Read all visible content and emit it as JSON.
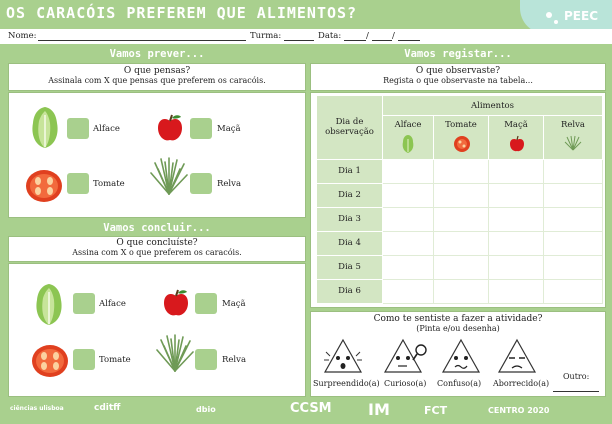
{
  "header": {
    "title": "OS CARACÓIS PREFEREM QUE ALIMENTOS?",
    "badge": "PEEC",
    "name_label": "Nome:",
    "class_label": "Turma:",
    "date_label": "Data:",
    "date_sep": "/"
  },
  "predict": {
    "heading": "Vamos prever...",
    "question": "O que pensas?",
    "instruction": "Assinala com X que pensas que preferem os caracóis.",
    "options": [
      "Alface",
      "Maçã",
      "Tomate",
      "Relva"
    ]
  },
  "conclude": {
    "heading": "Vamos concluir...",
    "question": "O que concluíste?",
    "instruction": "Assina com X o que preferem os caracóis.",
    "options": [
      "Alface",
      "Maçã",
      "Tomate",
      "Relva"
    ]
  },
  "register": {
    "heading": "Vamos registar...",
    "question": "O que observaste?",
    "instruction": "Regista o que observaste na tabela...",
    "table": {
      "row_header": [
        "Dia de",
        "observação"
      ],
      "group_header": "Alimentos",
      "columns": [
        "Alface",
        "Tomate",
        "Maçã",
        "Relva"
      ],
      "rows": [
        "Dia 1",
        "Dia 2",
        "Dia 3",
        "Dia 4",
        "Dia 5",
        "Dia 6"
      ]
    }
  },
  "feelings": {
    "question": "Como te sentiste a fazer a atividade?",
    "hint": "(Pinta e/ou desenha)",
    "faces": [
      "Surpreendido(a)",
      "Curioso(a)",
      "Confuso(a)",
      "Aborrecido(a)"
    ],
    "other_label": "Outro:"
  },
  "footer": {
    "logos": [
      "ciências ulisboa",
      "cditff",
      "dbio",
      "CCSM",
      "IM",
      "FCT",
      "CENTRO 2020"
    ]
  },
  "colors": {
    "background": "#a9d08e",
    "box": "#a9d08e",
    "table_header": "#d3e6c3",
    "badge": "#b9e4d9"
  }
}
